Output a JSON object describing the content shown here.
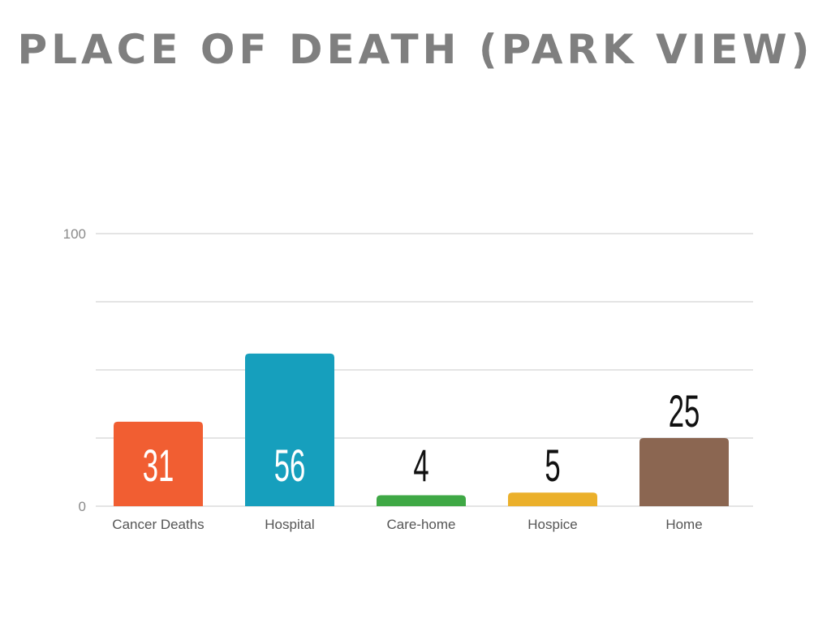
{
  "title": "PLACE OF DEATH (PARK VIEW)",
  "chart_data": {
    "type": "bar",
    "title": "PLACE OF DEATH (PARK VIEW)",
    "xlabel": "",
    "ylabel": "",
    "categories": [
      "Cancer Deaths",
      "Hospital",
      "Care-home",
      "Hospice",
      "Home"
    ],
    "values": [
      31,
      56,
      4,
      5,
      25
    ],
    "value_labels": [
      "31",
      "56",
      "4",
      "5",
      "25"
    ],
    "colors": [
      "#f15e32",
      "#169fbd",
      "#3fa845",
      "#ebb02b",
      "#8b6651"
    ],
    "value_label_colors": [
      "#ffffff",
      "#ffffff",
      "#111111",
      "#111111",
      "#111111"
    ],
    "value_label_inside": [
      true,
      true,
      false,
      false,
      false
    ],
    "ylim": [
      0,
      100
    ],
    "y_tick_labels": [
      "0",
      "100"
    ],
    "gridlines": [
      0,
      25,
      50,
      75,
      100
    ],
    "grid": true,
    "legend": "none"
  }
}
